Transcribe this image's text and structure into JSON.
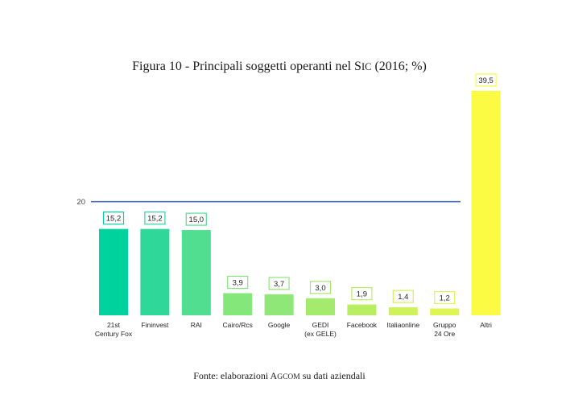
{
  "chart_data": {
    "type": "bar",
    "title_parts": [
      "Figura 10 - Principali soggetti operanti nel S",
      "IC",
      " (2016; %)"
    ],
    "categories": [
      [
        "21st",
        "Century Fox"
      ],
      [
        "Fininvest"
      ],
      [
        "RAI"
      ],
      [
        "Cairo/Rcs"
      ],
      [
        "Google"
      ],
      [
        "GEDI",
        "(ex GELE)"
      ],
      [
        "Facebook"
      ],
      [
        "Italiaonline"
      ],
      [
        "Gruppo",
        "24 Ore"
      ],
      [
        "Altri"
      ]
    ],
    "values": [
      15.2,
      15.2,
      15.0,
      3.9,
      3.7,
      3.0,
      1.9,
      1.4,
      1.2,
      39.5
    ],
    "value_labels": [
      "15,2",
      "15,2",
      "15,0",
      "3,9",
      "3,7",
      "3,0",
      "1,9",
      "1,4",
      "1,2",
      "39,5"
    ],
    "colors": [
      "#00d29e",
      "#2fd898",
      "#52de90",
      "#84e779",
      "#8ee776",
      "#a3ea6d",
      "#b9ee63",
      "#cdf25a",
      "#def554",
      "#fbfb44"
    ],
    "reference_line": {
      "value": 20,
      "label": "20",
      "color": "#4a73b5"
    },
    "ylim": [
      0,
      40
    ],
    "grid": false,
    "legend": false,
    "source_parts": [
      "Fonte: elaborazioni A",
      "GCOM",
      " su dati aziendali"
    ]
  }
}
